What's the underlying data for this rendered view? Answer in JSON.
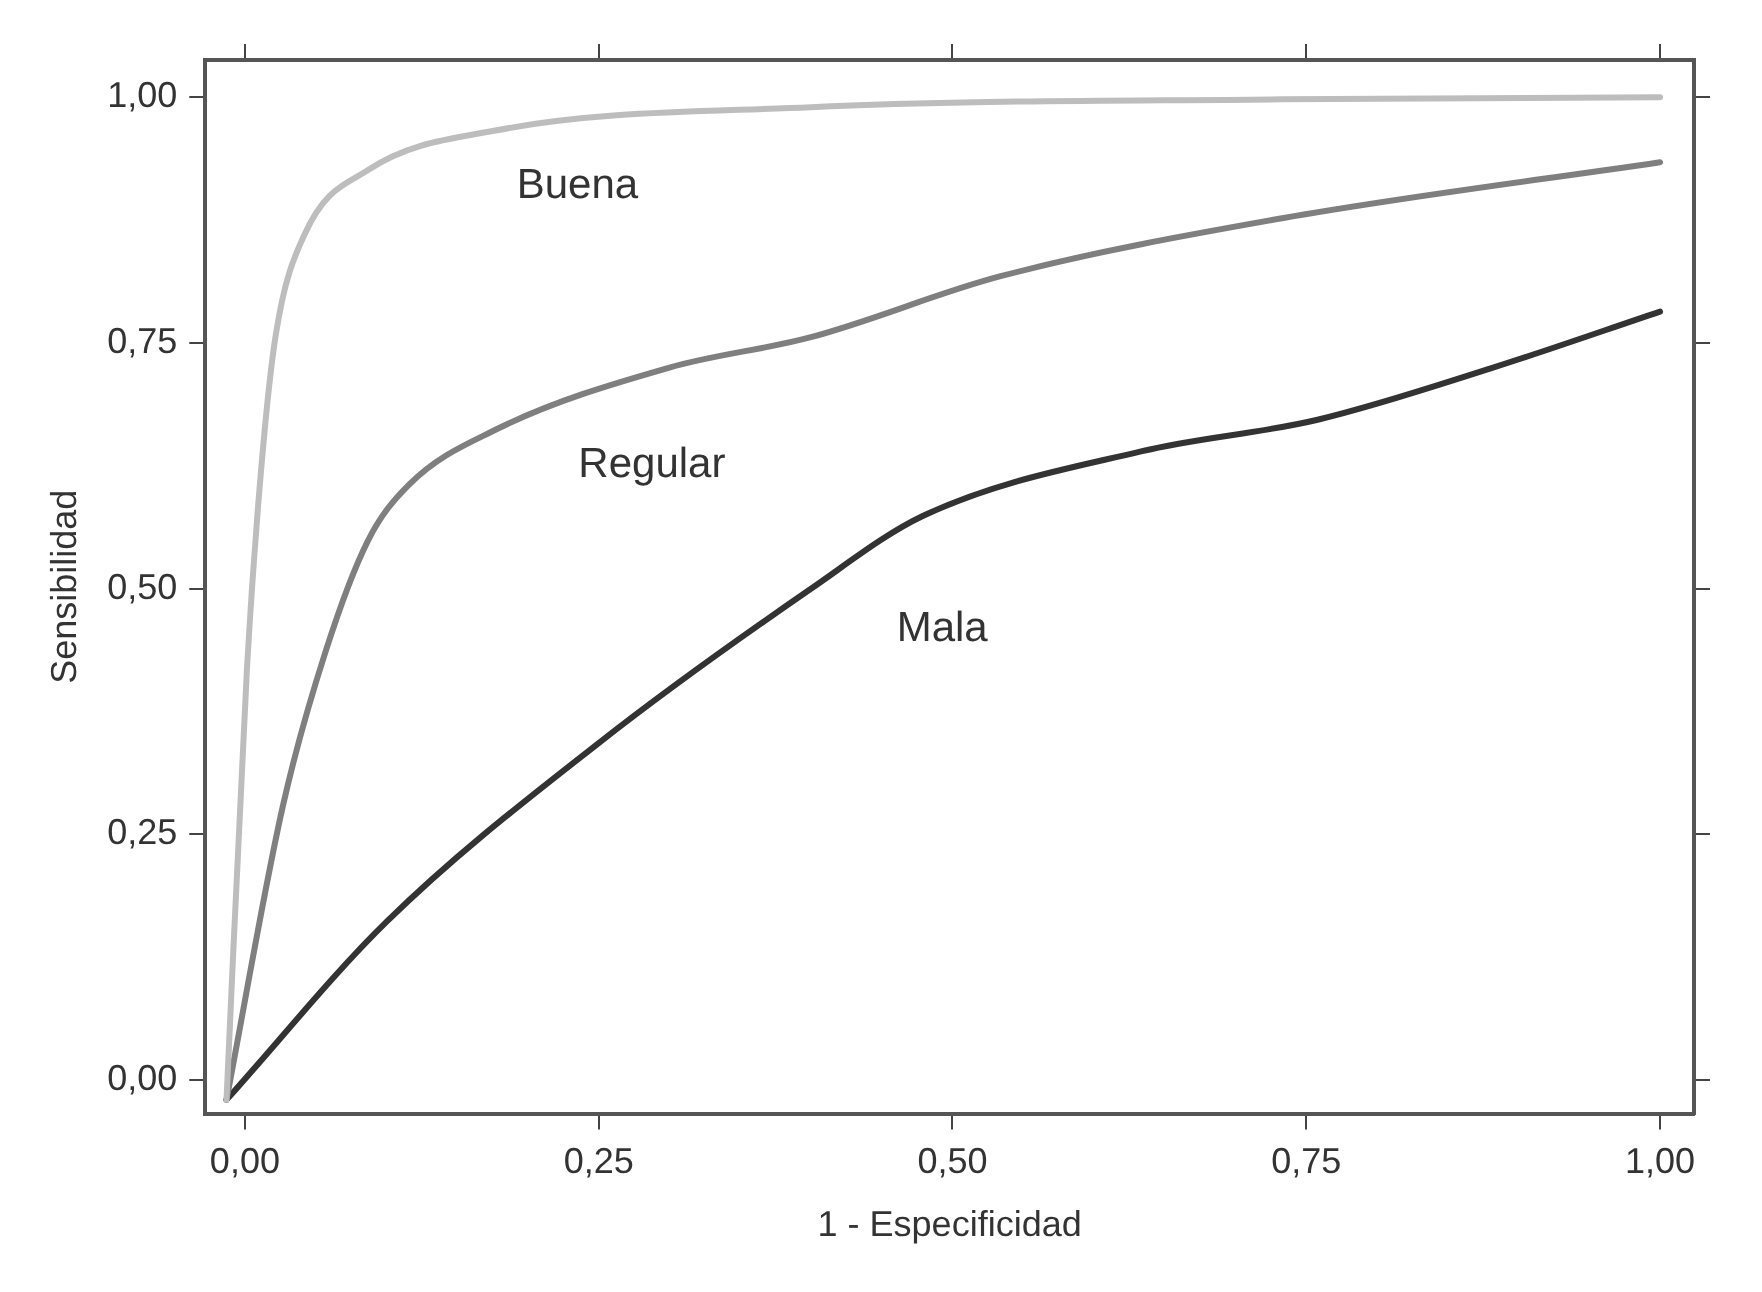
{
  "chart_data": {
    "type": "line",
    "xlabel": "1 - Especificidad",
    "ylabel": "Sensibilidad",
    "xlim": [
      -0.028,
      1.024
    ],
    "ylim": [
      -0.034,
      1.038
    ],
    "xticks": [
      {
        "value": 0,
        "label": "0,00"
      },
      {
        "value": 0.25,
        "label": "0,25"
      },
      {
        "value": 0.5,
        "label": "0,50"
      },
      {
        "value": 0.75,
        "label": "0,75"
      },
      {
        "value": 1,
        "label": "1,00"
      }
    ],
    "yticks": [
      {
        "value": 0,
        "label": "0,00"
      },
      {
        "value": 0.25,
        "label": "0,25"
      },
      {
        "value": 0.5,
        "label": "0,50"
      },
      {
        "value": 0.75,
        "label": "0,75"
      },
      {
        "value": 1,
        "label": "1,00"
      }
    ],
    "grid": false,
    "legend": false,
    "marker": "none",
    "line_style": "solid",
    "series": [
      {
        "name": "Buena",
        "color": "#bdbdbd",
        "x": [
          -0.013,
          0.0015,
          0.012,
          0.022,
          0.042,
          0.087,
          0.176,
          0.4,
          0.733,
          1.0
        ],
        "values": [
          -0.02,
          0.42,
          0.63,
          0.76,
          0.86,
          0.926,
          0.966,
          0.99,
          0.998,
          1.0
        ]
      },
      {
        "name": "Regular",
        "color": "#7f7f7f",
        "x": [
          -0.013,
          0.027,
          0.057,
          0.087,
          0.116,
          0.176,
          0.3,
          0.4,
          0.534,
          0.733,
          1.0
        ],
        "values": [
          -0.02,
          0.28,
          0.436,
          0.549,
          0.606,
          0.661,
          0.725,
          0.756,
          0.818,
          0.877,
          0.934
        ]
      },
      {
        "name": "Mala",
        "color": "#333333",
        "x": [
          -0.013,
          0.1,
          0.25,
          0.4,
          0.479,
          0.634,
          0.758,
          0.882,
          1.0
        ],
        "values": [
          -0.02,
          0.161,
          0.343,
          0.5,
          0.574,
          0.64,
          0.672,
          0.725,
          0.782
        ]
      }
    ]
  }
}
